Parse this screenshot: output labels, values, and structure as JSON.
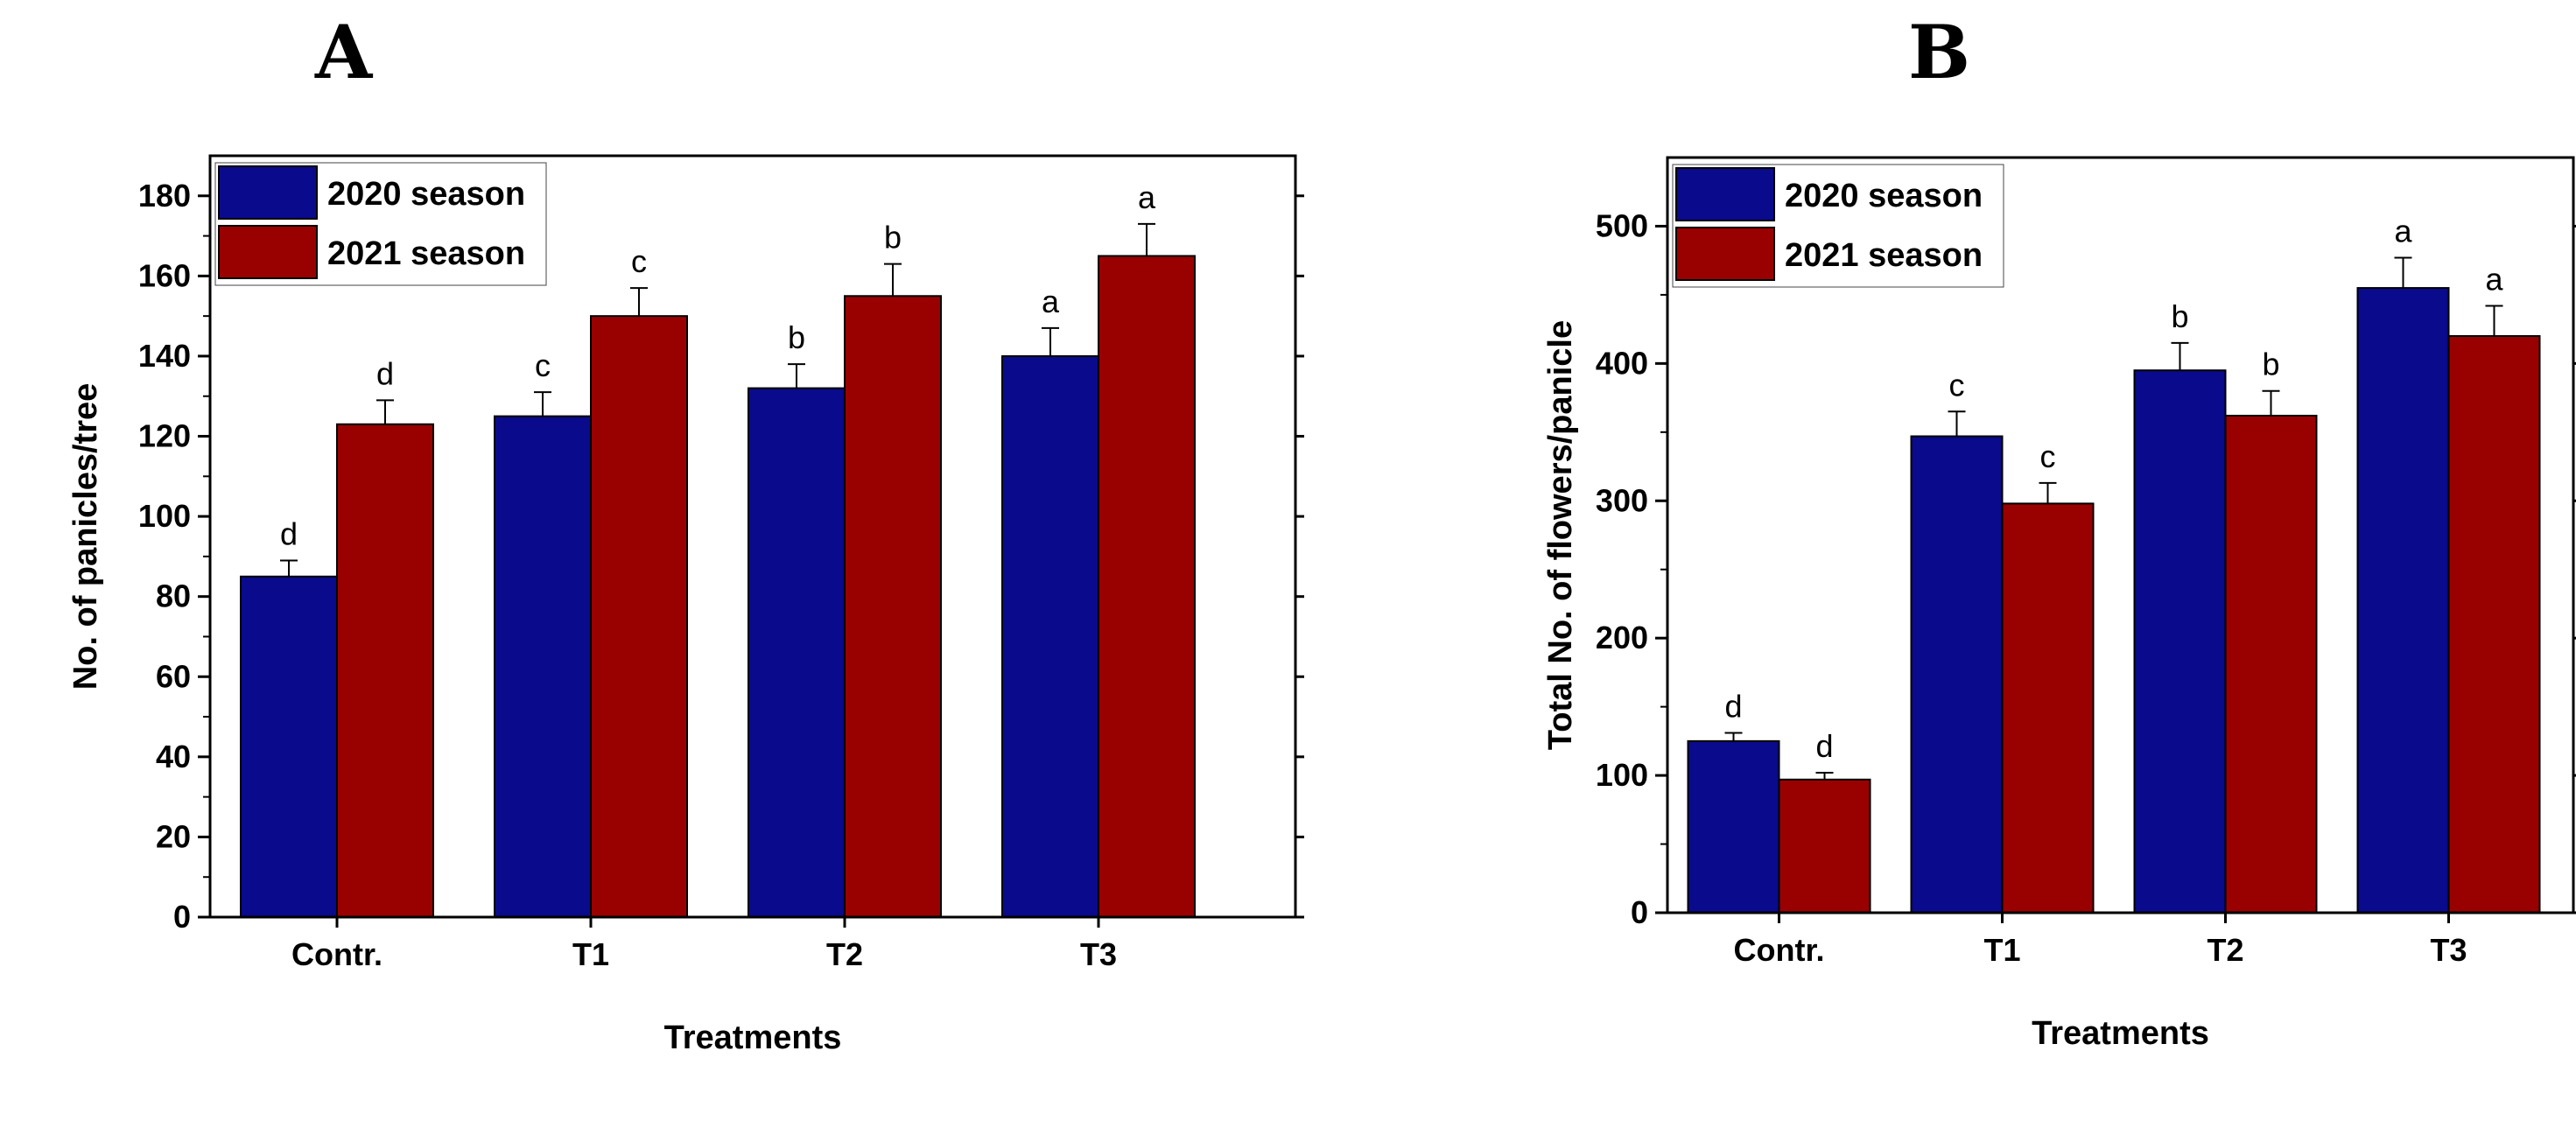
{
  "chart_data": [
    {
      "type": "bar",
      "panel_label": "A",
      "categories": [
        "Contr.",
        "T1",
        "T2",
        "T3"
      ],
      "series": [
        {
          "name": "2020 season",
          "color": "#0a0a8c",
          "values": [
            85,
            125,
            132,
            140
          ],
          "errors": [
            4,
            6,
            6,
            7
          ],
          "letters": [
            "d",
            "c",
            "b",
            "a"
          ]
        },
        {
          "name": "2021 season",
          "color": "#990000",
          "values": [
            123,
            150,
            155,
            165
          ],
          "errors": [
            6,
            7,
            8,
            8
          ],
          "letters": [
            "d",
            "c",
            "b",
            "a"
          ]
        }
      ],
      "xlabel": "Treatments",
      "ylabel": "No. of panicles/tree",
      "ylim": [
        0,
        190
      ],
      "yticks": [
        "0",
        "20",
        "40",
        "60",
        "80",
        "100",
        "120",
        "140",
        "160",
        "180"
      ],
      "legend_position": "top-left"
    },
    {
      "type": "bar",
      "panel_label": "B",
      "categories": [
        "Contr.",
        "T1",
        "T2",
        "T3"
      ],
      "series": [
        {
          "name": "2020 season",
          "color": "#0a0a8c",
          "values": [
            125,
            347,
            395,
            455
          ],
          "errors": [
            6,
            18,
            20,
            22
          ],
          "letters": [
            "d",
            "c",
            "b",
            "a"
          ]
        },
        {
          "name": "2021 season",
          "color": "#990000",
          "values": [
            97,
            298,
            362,
            420
          ],
          "errors": [
            5,
            15,
            18,
            22
          ],
          "letters": [
            "d",
            "c",
            "b",
            "a"
          ]
        }
      ],
      "xlabel": "Treatments",
      "ylabel": "Total No. of flowers/panicle",
      "ylim": [
        0,
        550
      ],
      "yticks": [
        "0",
        "100",
        "200",
        "300",
        "400",
        "500"
      ],
      "legend_position": "top-left"
    }
  ]
}
